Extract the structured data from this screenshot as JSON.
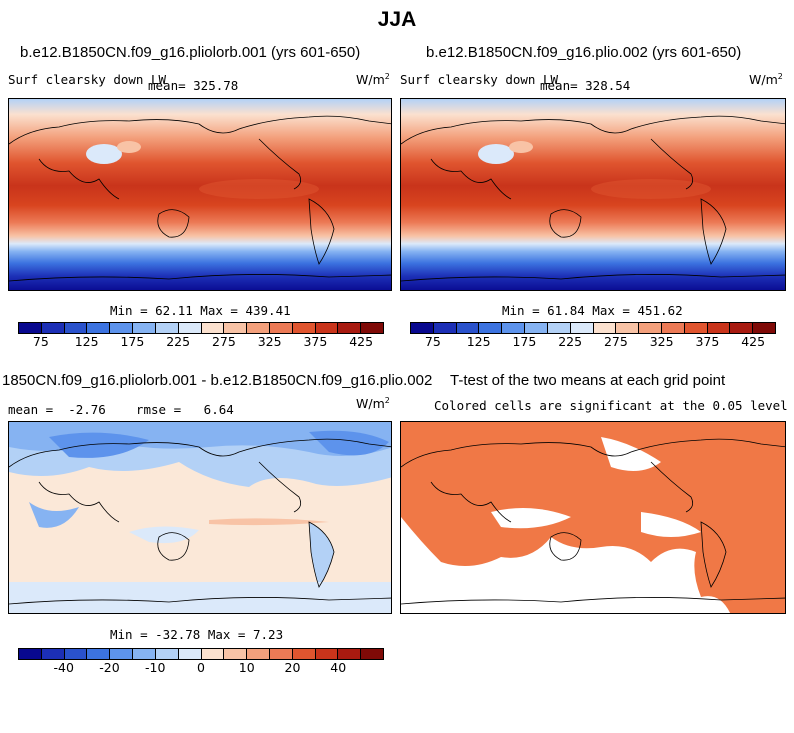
{
  "title": "JJA",
  "panel1": {
    "title": "b.e12.B1850CN.f09_g16.pliolorb.001 (yrs 601-650)",
    "variable": "Surf clearsky down LW",
    "mean": "mean= 325.78",
    "units": "W/m",
    "units_exp": "2",
    "minmax": "Min =  62.11 Max = 439.41"
  },
  "panel2": {
    "title": "b.e12.B1850CN.f09_g16.plio.002 (yrs 601-650)",
    "variable": "Surf clearsky down LW",
    "mean": "mean= 328.54",
    "units": "W/m",
    "units_exp": "2",
    "minmax": "Min =  61.84 Max = 451.62"
  },
  "panel3": {
    "title": "1850CN.f09_g16.pliolorb.001 - b.e12.B1850CN.f09_g16.plio.002",
    "stats": "mean =  -2.76    rmse =   6.64",
    "units": "W/m",
    "units_exp": "2",
    "minmax": "Min = -32.78 Max =   7.23"
  },
  "panel4": {
    "title": "T-test of the two means at each grid point",
    "subtitle": "Colored cells are significant at the 0.05 level",
    "color": "#f07846"
  },
  "colorbar_abs": {
    "colors": [
      "#08088f",
      "#1c2fb6",
      "#2a52cc",
      "#3c73e0",
      "#5d93ec",
      "#86b3f2",
      "#b3d1f6",
      "#dbe9fa",
      "#fbe1cf",
      "#f8c3a6",
      "#f3a07c",
      "#ec7a56",
      "#e0552f",
      "#c9341b",
      "#a81a10",
      "#7f0a07"
    ],
    "ticks": [
      "75",
      "125",
      "175",
      "225",
      "275",
      "325",
      "375",
      "425"
    ]
  },
  "colorbar_diff": {
    "colors": [
      "#08088f",
      "#1c2fb6",
      "#2a52cc",
      "#3c73e0",
      "#5d93ec",
      "#86b3f2",
      "#b3d1f6",
      "#dbe9fa",
      "#fbe1cf",
      "#f8c3a6",
      "#f3a07c",
      "#ec7a56",
      "#e0552f",
      "#c9341b",
      "#a81a10",
      "#7f0a07"
    ],
    "ticks": [
      "-40",
      "-20",
      "-10",
      "0",
      "10",
      "20",
      "40"
    ]
  }
}
